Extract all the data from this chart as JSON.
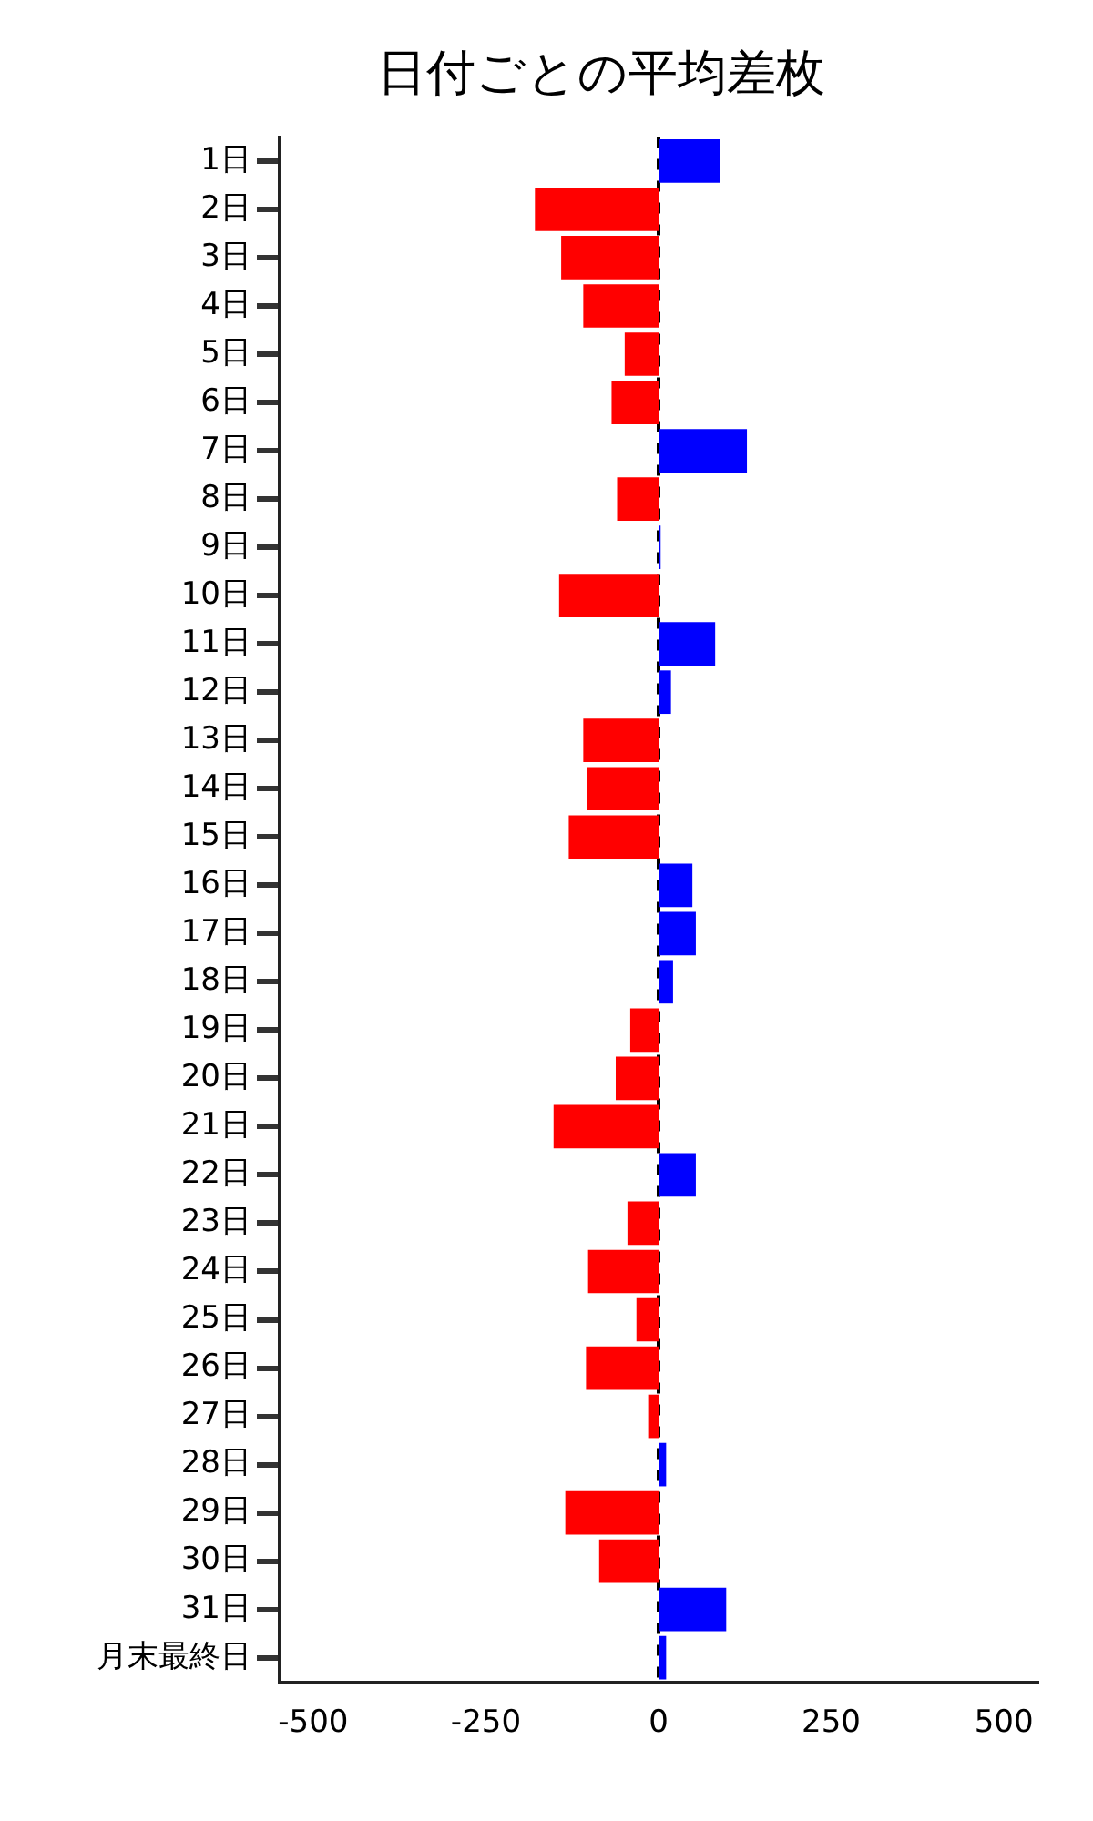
{
  "chart_data": {
    "type": "bar",
    "orientation": "horizontal",
    "title": "日付ごとの平均差枚",
    "categories": [
      "1日",
      "2日",
      "3日",
      "4日",
      "5日",
      "6日",
      "7日",
      "8日",
      "9日",
      "10日",
      "11日",
      "12日",
      "13日",
      "14日",
      "15日",
      "16日",
      "17日",
      "18日",
      "19日",
      "20日",
      "21日",
      "22日",
      "23日",
      "24日",
      "25日",
      "26日",
      "27日",
      "28日",
      "29日",
      "30日",
      "31日",
      "月末最終日"
    ],
    "values": [
      89,
      -179,
      -141,
      -109,
      -49,
      -68,
      128,
      -60,
      3,
      -144,
      82,
      18,
      -109,
      -103,
      -130,
      49,
      54,
      21,
      -41,
      -62,
      -152,
      54,
      -45,
      -102,
      -32,
      -105,
      -15,
      11,
      -135,
      -86,
      98,
      11
    ],
    "colors": [
      "#0000ff",
      "#ff0000",
      "#ff0000",
      "#ff0000",
      "#ff0000",
      "#ff0000",
      "#0000ff",
      "#ff0000",
      "#0000ff",
      "#ff0000",
      "#0000ff",
      "#0000ff",
      "#ff0000",
      "#ff0000",
      "#ff0000",
      "#0000ff",
      "#0000ff",
      "#0000ff",
      "#ff0000",
      "#ff0000",
      "#ff0000",
      "#0000ff",
      "#ff0000",
      "#ff0000",
      "#ff0000",
      "#ff0000",
      "#ff0000",
      "#0000ff",
      "#ff0000",
      "#ff0000",
      "#0000ff",
      "#0000ff"
    ],
    "xlim": [
      -550,
      550
    ],
    "xticks": [
      -500,
      -250,
      0,
      250,
      500
    ],
    "ref_lines": [
      {
        "axis": "x",
        "value": 0,
        "color": "#000000",
        "line_style": "dashed"
      }
    ],
    "grid": false,
    "legend": false
  }
}
